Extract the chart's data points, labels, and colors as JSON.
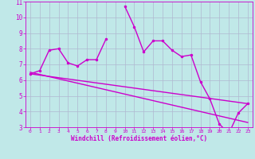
{
  "xlabel": "Windchill (Refroidissement éolien,°C)",
  "bg_color": "#c0e8e8",
  "grid_color": "#b0b8d0",
  "line_color": "#cc00cc",
  "x_hours": [
    0,
    1,
    2,
    3,
    4,
    5,
    6,
    7,
    8,
    9,
    10,
    11,
    12,
    13,
    14,
    15,
    16,
    17,
    18,
    19,
    20,
    21,
    22,
    23
  ],
  "y_main": [
    6.4,
    6.6,
    7.9,
    8.0,
    7.1,
    6.9,
    7.3,
    7.3,
    8.6,
    null,
    10.7,
    9.4,
    7.8,
    8.5,
    8.5,
    7.9,
    7.5,
    7.6,
    5.9,
    4.8,
    3.2,
    2.6,
    3.9,
    4.5
  ],
  "y_line1_start": 6.5,
  "y_line1_end": 3.3,
  "y_line2_start": 6.4,
  "y_line2_end": 4.5,
  "ylim": [
    3,
    11
  ],
  "xlim_min": -0.5,
  "xlim_max": 23.5,
  "yticks": [
    3,
    4,
    5,
    6,
    7,
    8,
    9,
    10,
    11
  ],
  "xticks": [
    0,
    1,
    2,
    3,
    4,
    5,
    6,
    7,
    8,
    9,
    10,
    11,
    12,
    13,
    14,
    15,
    16,
    17,
    18,
    19,
    20,
    21,
    22,
    23
  ],
  "linewidth": 1.0,
  "markersize": 3
}
